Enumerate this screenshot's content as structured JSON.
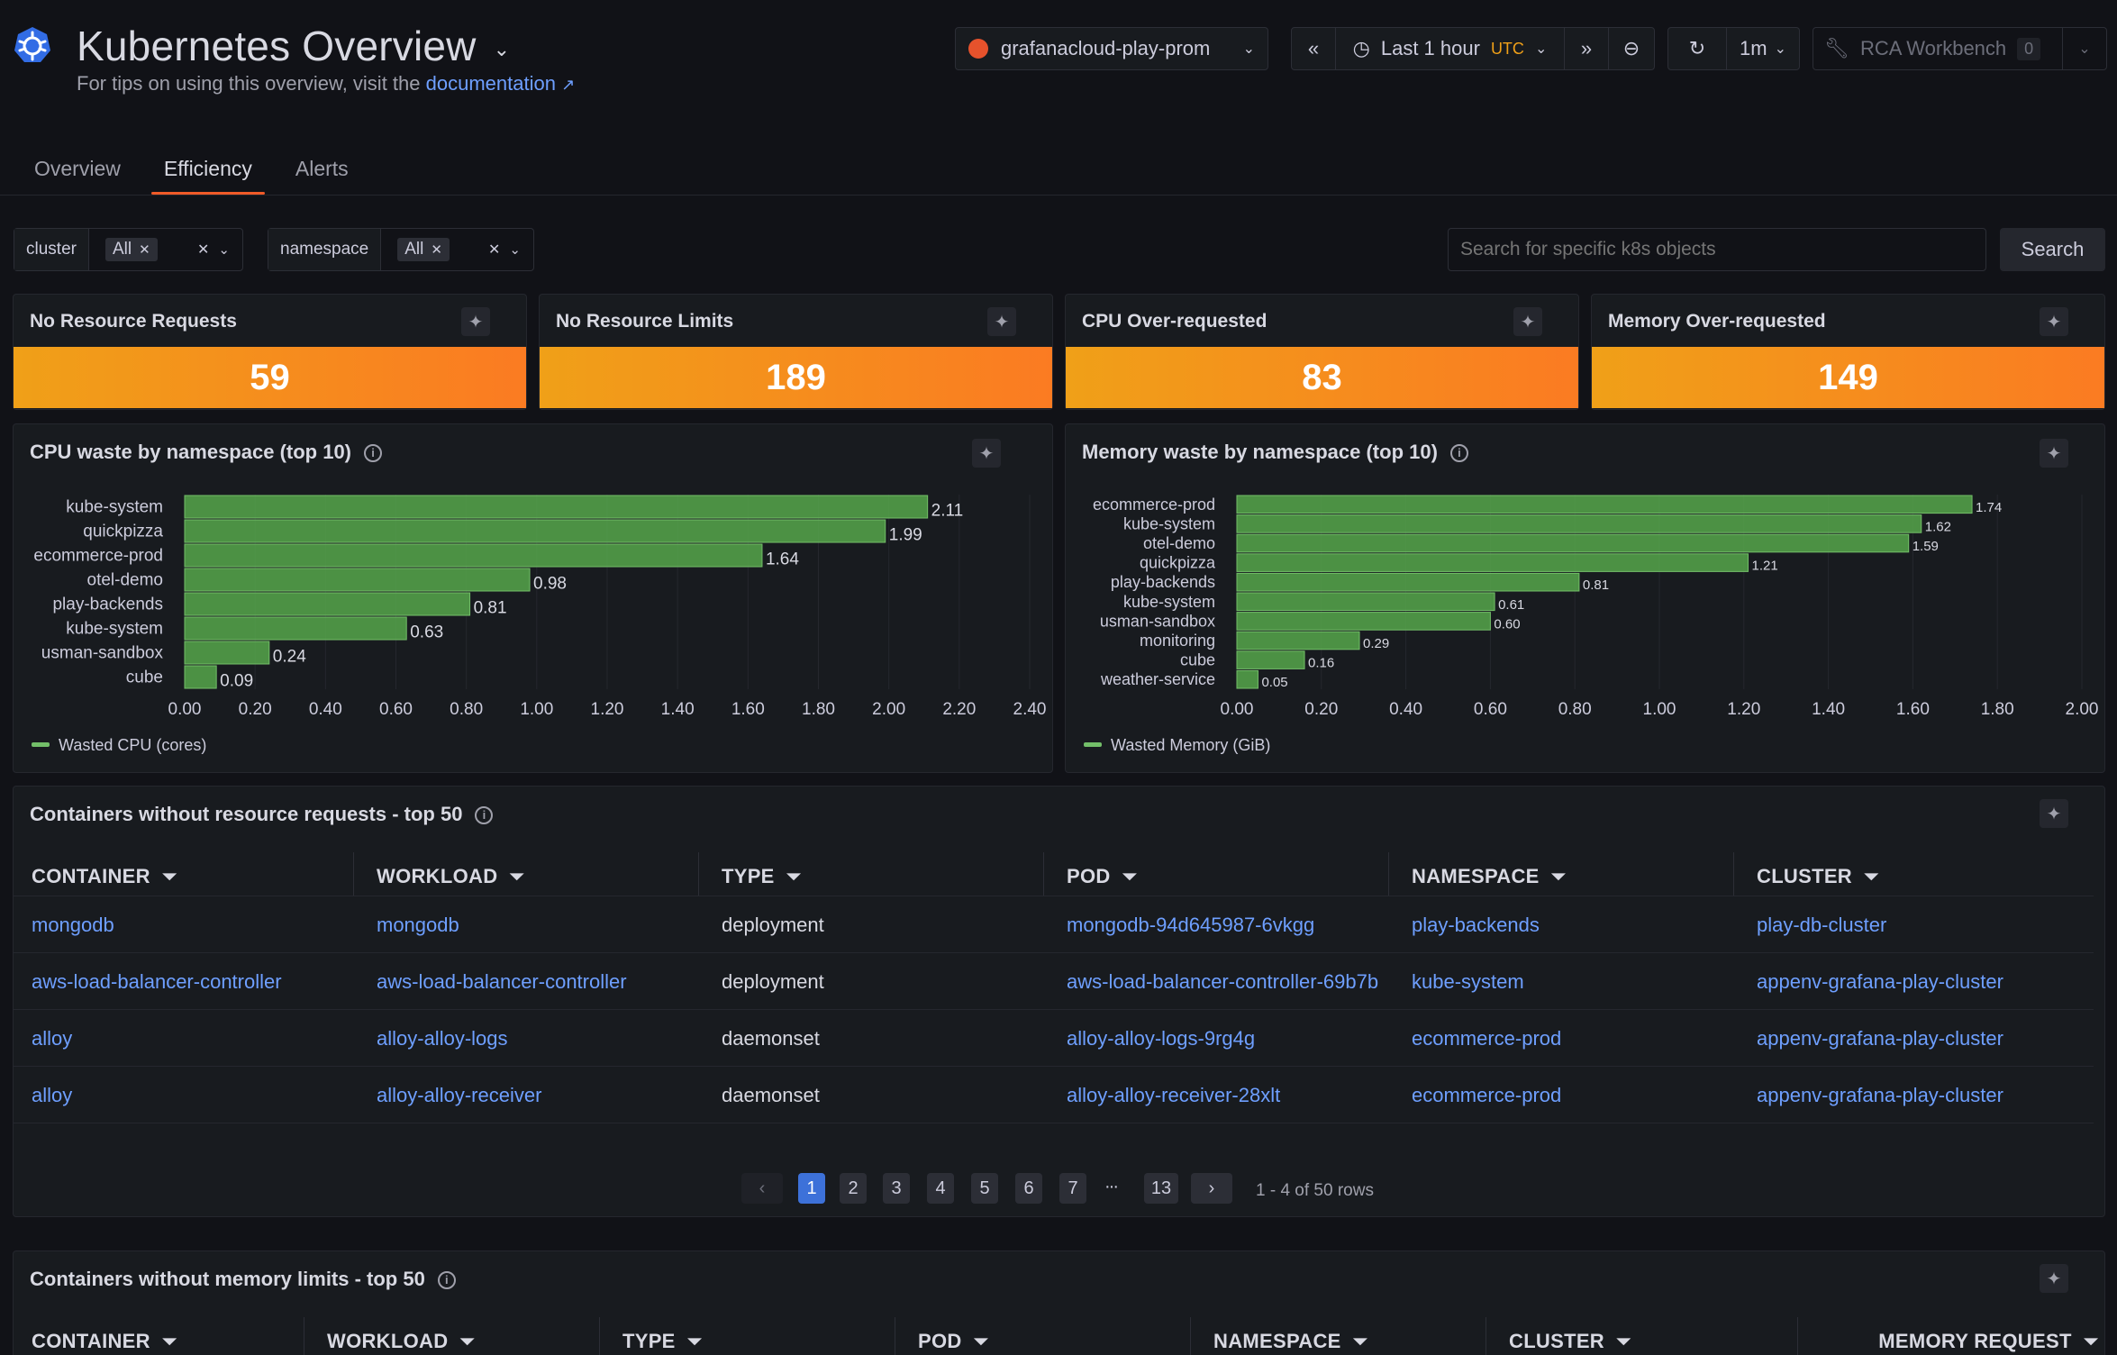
{
  "header": {
    "title": "Kubernetes Overview",
    "subtitle_prefix": "For tips on using this overview, visit the",
    "subtitle_link": "documentation",
    "datasource": "grafanacloud-play-prom",
    "time_range": "Last 1 hour",
    "timezone": "UTC",
    "refresh_interval": "1m",
    "rca_label": "RCA Workbench",
    "rca_count": "0"
  },
  "tabs": [
    {
      "label": "Overview"
    },
    {
      "label": "Efficiency"
    },
    {
      "label": "Alerts"
    }
  ],
  "filters": {
    "cluster_label": "cluster",
    "cluster_value": "All",
    "namespace_label": "namespace",
    "namespace_value": "All",
    "search_placeholder": "Search for specific k8s objects",
    "search_button": "Search"
  },
  "stats": [
    {
      "title": "No Resource Requests",
      "value": "59"
    },
    {
      "title": "No Resource Limits",
      "value": "189"
    },
    {
      "title": "CPU Over-requested",
      "value": "83"
    },
    {
      "title": "Memory Over-requested",
      "value": "149"
    }
  ],
  "colors": {
    "bar": "#56a64b",
    "accent": "#f05a28",
    "link": "#6e9fff"
  },
  "chart_data": [
    {
      "type": "bar",
      "orientation": "horizontal",
      "title": "CPU waste by namespace (top 10)",
      "categories": [
        "kube-system",
        "quickpizza",
        "ecommerce-prod",
        "otel-demo",
        "play-backends",
        "kube-system",
        "usman-sandbox",
        "cube"
      ],
      "series": [
        {
          "name": "Wasted CPU (cores)",
          "values": [
            2.11,
            1.99,
            1.64,
            0.98,
            0.81,
            0.63,
            0.24,
            0.09
          ]
        }
      ],
      "value_labels": [
        "2.11",
        "1.99",
        "1.64",
        "0.98",
        "0.81",
        "0.63",
        "0.24",
        "0.09"
      ],
      "xticks": [
        "0.00",
        "0.20",
        "0.40",
        "0.60",
        "0.80",
        "1.00",
        "1.20",
        "1.40",
        "1.60",
        "1.80",
        "2.00",
        "2.20",
        "2.40"
      ],
      "xlim": [
        0,
        2.4
      ],
      "legend": "bottom-left"
    },
    {
      "type": "bar",
      "orientation": "horizontal",
      "title": "Memory waste by namespace (top 10)",
      "categories": [
        "ecommerce-prod",
        "kube-system",
        "otel-demo",
        "quickpizza",
        "play-backends",
        "kube-system",
        "usman-sandbox",
        "monitoring",
        "cube",
        "weather-service"
      ],
      "series": [
        {
          "name": "Wasted Memory (GiB)",
          "values": [
            1.74,
            1.62,
            1.59,
            1.21,
            0.81,
            0.61,
            0.6,
            0.29,
            0.16,
            0.05
          ]
        }
      ],
      "value_labels": [
        "1.74",
        "1.62",
        "1.59",
        "1.21",
        "0.81",
        "0.61",
        "0.60",
        "0.29",
        "0.16",
        "0.05"
      ],
      "xticks": [
        "0.00",
        "0.20",
        "0.40",
        "0.60",
        "0.80",
        "1.00",
        "1.20",
        "1.40",
        "1.60",
        "1.80",
        "2.00"
      ],
      "xlim": [
        0,
        2.0
      ],
      "legend": "bottom-left"
    }
  ],
  "table1": {
    "title": "Containers without resource requests - top 50",
    "columns": [
      "CONTAINER",
      "WORKLOAD",
      "TYPE",
      "POD",
      "NAMESPACE",
      "CLUSTER"
    ],
    "rows": [
      [
        "mongodb",
        "mongodb",
        "deployment",
        "mongodb-94d645987-6vkgg",
        "play-backends",
        "play-db-cluster"
      ],
      [
        "aws-load-balancer-controller",
        "aws-load-balancer-controller",
        "deployment",
        "aws-load-balancer-controller-69b7b",
        "kube-system",
        "appenv-grafana-play-cluster"
      ],
      [
        "alloy",
        "alloy-alloy-logs",
        "daemonset",
        "alloy-alloy-logs-9rg4g",
        "ecommerce-prod",
        "appenv-grafana-play-cluster"
      ],
      [
        "alloy",
        "alloy-alloy-receiver",
        "daemonset",
        "alloy-alloy-receiver-28xlt",
        "ecommerce-prod",
        "appenv-grafana-play-cluster"
      ]
    ],
    "pages": [
      "1",
      "2",
      "3",
      "4",
      "5",
      "6",
      "7",
      "13"
    ],
    "ellipsis": "···",
    "row_info": "1 - 4 of 50 rows"
  },
  "table2": {
    "title": "Containers without memory limits - top 50",
    "columns": [
      "CONTAINER",
      "WORKLOAD",
      "TYPE",
      "POD",
      "NAMESPACE",
      "CLUSTER",
      "MEMORY REQUEST"
    ]
  }
}
